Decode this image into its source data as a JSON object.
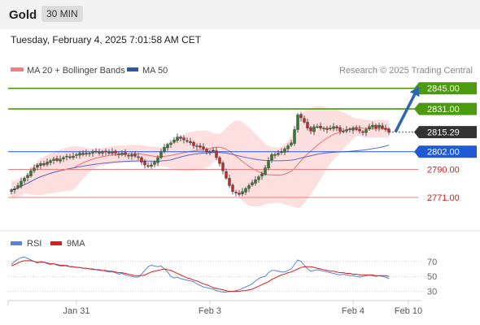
{
  "header": {
    "instrument": "Gold",
    "timeframe": "30 MIN",
    "datetime": "Tuesday, February 4, 2025 7:01:58 AM CET"
  },
  "colors": {
    "bullish": "#2e7d32",
    "bearish": "#c62828",
    "ma20": "#e57373",
    "bands_fill": "#fdd9d9",
    "ma50": "#5c6bc0",
    "resistance": "#4c9a0f",
    "support": "#f08080",
    "pivot": "#1e5ad6",
    "arrow": "#2c66b0",
    "rsi": "#5b82d6",
    "rsi_ma": "#e01b1b"
  },
  "chart_data": [
    {
      "type": "candlestick",
      "legend": [
        {
          "label": "MA 20 + Bollinger Bands",
          "color": "#f08080"
        },
        {
          "label": "MA 50",
          "color": "#2c5aa0"
        }
      ],
      "source": "Research © 2025 Trading Central",
      "ylim": [
        2755,
        2852
      ],
      "levels": [
        {
          "label": "2845.00",
          "value": 2845.0,
          "kind": "resistance"
        },
        {
          "label": "2831.00",
          "value": 2831.0,
          "kind": "resistance"
        },
        {
          "label": "2815.29",
          "value": 2815.29,
          "kind": "last"
        },
        {
          "label": "2802.00",
          "value": 2802.0,
          "kind": "pivot"
        },
        {
          "label": "2790.00",
          "value": 2790.0,
          "kind": "support"
        },
        {
          "label": "2771.00",
          "value": 2771.0,
          "kind": "support"
        }
      ],
      "x_ticks": [
        {
          "label": "Jan 31",
          "index": 20
        },
        {
          "label": "Feb 3",
          "index": 61
        },
        {
          "label": "Feb 4",
          "index": 105
        },
        {
          "label": "Feb 10",
          "index": 122
        }
      ],
      "projection": {
        "from_index": 117,
        "from_value": 2815.29,
        "to_index": 127,
        "to_value": 2845.0
      },
      "closes": [
        2776,
        2777,
        2779,
        2782,
        2784,
        2786,
        2789,
        2791,
        2793,
        2794,
        2793,
        2795,
        2796,
        2797,
        2796,
        2797,
        2798,
        2799,
        2798,
        2799,
        2800,
        2801,
        2800,
        2801,
        2801,
        2802,
        2802,
        2801,
        2802,
        2802,
        2801,
        2802,
        2801,
        2800,
        2801,
        2800,
        2799,
        2800,
        2799,
        2798,
        2795,
        2793,
        2792,
        2793,
        2795,
        2798,
        2802,
        2805,
        2807,
        2808,
        2810,
        2812,
        2811,
        2810,
        2809,
        2808,
        2806,
        2806,
        2805,
        2804,
        2802,
        2802,
        2803,
        2798,
        2794,
        2789,
        2784,
        2779,
        2775,
        2774,
        2773,
        2775,
        2777,
        2779,
        2781,
        2783,
        2785,
        2787,
        2791,
        2796,
        2800,
        2800,
        2801,
        2802,
        2804,
        2806,
        2808,
        2817,
        2827,
        2825,
        2822,
        2818,
        2816,
        2819,
        2819,
        2818,
        2818,
        2817,
        2818,
        2819,
        2818,
        2816,
        2816,
        2817,
        2817,
        2818,
        2817,
        2816,
        2815,
        2817,
        2819,
        2820,
        2818,
        2820,
        2818,
        2817,
        2815.29
      ]
    },
    {
      "type": "line",
      "legend": [
        {
          "label": "RSI",
          "color": "#5b82d6"
        },
        {
          "label": "9MA",
          "color": "#e01b1b"
        }
      ],
      "ylim": [
        22,
        85
      ],
      "y_ticks": [
        70,
        50,
        30
      ],
      "series": [
        {
          "name": "RSI",
          "values": [
            66,
            70,
            73,
            75,
            76,
            74,
            72,
            70,
            68,
            70,
            69,
            67,
            66,
            67,
            65,
            64,
            64,
            65,
            63,
            63,
            62,
            62,
            61,
            61,
            60,
            59,
            59,
            58,
            58,
            57,
            56,
            56,
            55,
            53,
            54,
            52,
            51,
            50,
            49,
            49,
            53,
            58,
            63,
            65,
            64,
            63,
            64,
            60,
            56,
            50,
            48,
            49,
            47,
            46,
            45,
            44,
            43,
            40,
            38,
            36,
            35,
            34,
            33,
            31,
            30,
            29,
            29,
            30,
            30,
            31,
            32,
            34,
            36,
            38,
            40,
            44,
            47,
            49,
            50,
            55,
            58,
            58,
            57,
            56,
            56,
            58,
            60,
            66,
            72,
            70,
            65,
            60,
            57,
            58,
            59,
            58,
            57,
            56,
            55,
            54,
            53,
            52,
            53,
            52,
            51,
            51,
            50,
            49,
            50,
            51,
            52,
            51,
            50,
            51,
            50,
            49,
            47
          ]
        },
        {
          "name": "9MA",
          "values": [
            64,
            66,
            68,
            70,
            71,
            71,
            71,
            70,
            69,
            69,
            69,
            68,
            67,
            67,
            66,
            65,
            65,
            64,
            63,
            63,
            62,
            62,
            61,
            61,
            60,
            60,
            59,
            59,
            58,
            58,
            57,
            57,
            56,
            55,
            55,
            54,
            53,
            52,
            51,
            51,
            51,
            52,
            54,
            56,
            57,
            58,
            59,
            60,
            59,
            58,
            56,
            54,
            52,
            50,
            48,
            47,
            45,
            44,
            42,
            40,
            39,
            37,
            35,
            34,
            33,
            32,
            31,
            30,
            30,
            30,
            30,
            31,
            31,
            32,
            33,
            35,
            37,
            39,
            41,
            43,
            46,
            48,
            50,
            52,
            53,
            55,
            56,
            58,
            60,
            62,
            63,
            63,
            63,
            62,
            61,
            60,
            59,
            58,
            57,
            57,
            56,
            55,
            55,
            54,
            54,
            53,
            53,
            52,
            52,
            52,
            52,
            52,
            51,
            51,
            51,
            51,
            50
          ]
        }
      ]
    }
  ]
}
